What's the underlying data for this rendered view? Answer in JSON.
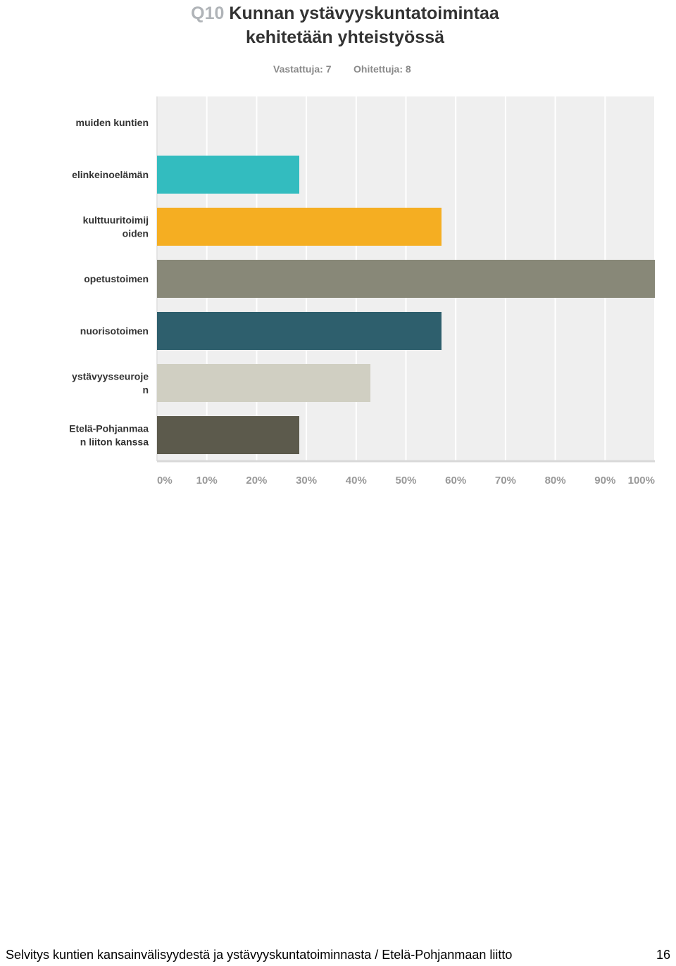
{
  "header": {
    "question_code": "Q10",
    "title_line1": "Kunnan ystävyyskuntatoimintaa",
    "title_line2": "kehitetään yhteistyössä",
    "answered": "Vastattuja: 7",
    "skipped": "Ohitettuja: 8"
  },
  "chart_data": {
    "type": "bar",
    "orientation": "horizontal",
    "categories": [
      [
        "muiden kuntien"
      ],
      [
        "elinkeinoelämän"
      ],
      [
        "kulttuuritoimij",
        "oiden"
      ],
      [
        "opetustoimen"
      ],
      [
        "nuorisotoimen"
      ],
      [
        "ystävyysseuroje",
        "n"
      ],
      [
        "Etelä-Pohjanmaa",
        "n liiton kanssa"
      ]
    ],
    "values": [
      0,
      28.57,
      57.14,
      100,
      57.14,
      42.86,
      28.57
    ],
    "colors": [
      "#2f8fa6",
      "#33bcbf",
      "#f5ae22",
      "#888878",
      "#2e5f6d",
      "#d0cfc2",
      "#5c5a4c"
    ],
    "xlim": [
      0,
      100
    ],
    "xticks": [
      "0%",
      "10%",
      "20%",
      "30%",
      "40%",
      "50%",
      "60%",
      "70%",
      "80%",
      "90%",
      "100%"
    ],
    "grid": true,
    "legend": "none",
    "plot_background": "#efefef"
  },
  "footer": {
    "text": "Selvitys kuntien kansainvälisyydestä ja ystävyyskuntatoiminnasta / Etelä-Pohjanmaan liitto",
    "page_number": "16"
  }
}
